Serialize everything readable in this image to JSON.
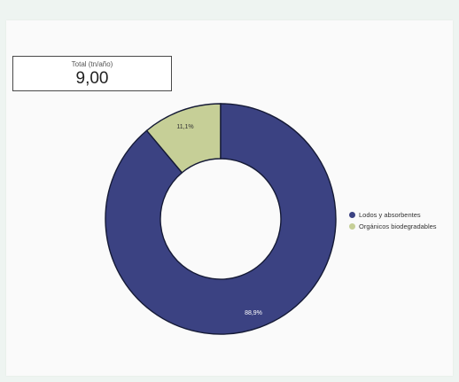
{
  "kpi": {
    "label": "Total (tn/año)",
    "value": "9,00"
  },
  "chart_data": {
    "type": "pie",
    "subtype": "donut",
    "categories": [
      "Lodos y absorbentes",
      "Orgánicos biodegradables"
    ],
    "values": [
      88.9,
      11.1
    ],
    "labels": [
      "88,9%",
      "11,1%"
    ],
    "colors": [
      "#3b4282",
      "#c6cf97"
    ],
    "legend_position": "right"
  }
}
